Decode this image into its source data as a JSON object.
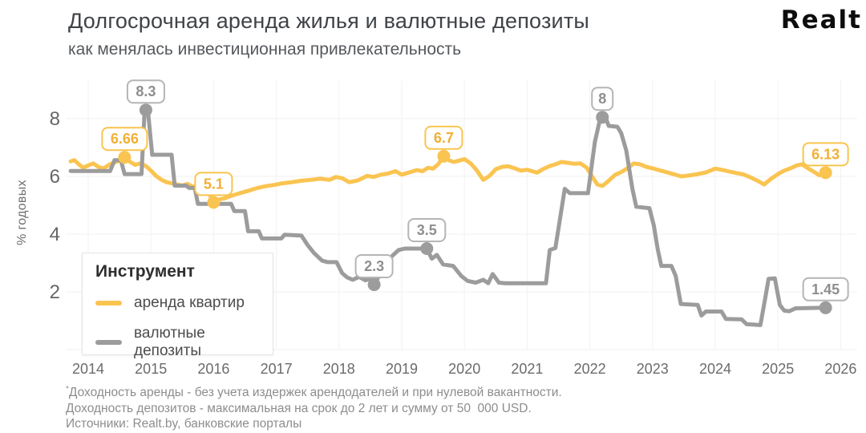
{
  "header": {
    "title": "Долгосрочная аренда жилья и валютные депозиты",
    "subtitle": "как менялась инвестиционная привлекательность",
    "logo": "Realt"
  },
  "footer": {
    "marker": "*",
    "lines": [
      "Доходность аренды - без учета издержек арендодателей и при нулевой вакантности.",
      "Доходность депозитов - максимальная на срок до 2 лет и сумму от 50  000 USD.",
      "Источники: Realt.by, банковские порталы"
    ]
  },
  "chart_data": {
    "type": "line",
    "title": "Долгосрочная аренда жилья и валютные депозиты",
    "subtitle": "как менялась инвестиционная привлекательность",
    "ylabel": "% годовых",
    "xlabel": "",
    "x_ticks": [
      2014,
      2015,
      2016,
      2017,
      2018,
      2019,
      2020,
      2021,
      2022,
      2023,
      2024,
      2025,
      2026
    ],
    "y_ticks": [
      2,
      4,
      6,
      8
    ],
    "y_gridlines": [
      0,
      2,
      4,
      6,
      8
    ],
    "xlim": [
      2013.7,
      2026.3
    ],
    "ylim": [
      0,
      9.3
    ],
    "grid": true,
    "legend": {
      "title": "Инструмент",
      "position": "bottom-left",
      "entries": [
        {
          "label": "аренда квартир",
          "color": "#FAC451"
        },
        {
          "label": "валютные депозиты",
          "color": "#9C9C9C"
        }
      ]
    },
    "series": [
      {
        "name": "аренда квартир",
        "color": "#FAC451",
        "label_color": "#F2AF35",
        "label_border": "#F8C54F",
        "points": [
          [
            2013.72,
            6.52
          ],
          [
            2013.78,
            6.56
          ],
          [
            2013.85,
            6.42
          ],
          [
            2013.92,
            6.3
          ],
          [
            2014.0,
            6.38
          ],
          [
            2014.08,
            6.45
          ],
          [
            2014.17,
            6.32
          ],
          [
            2014.25,
            6.28
          ],
          [
            2014.33,
            6.4
          ],
          [
            2014.42,
            6.48
          ],
          [
            2014.5,
            6.55
          ],
          [
            2014.58,
            6.66
          ],
          [
            2014.67,
            6.5
          ],
          [
            2014.75,
            6.4
          ],
          [
            2014.83,
            6.45
          ],
          [
            2014.92,
            6.36
          ],
          [
            2015.0,
            6.2
          ],
          [
            2015.08,
            6.02
          ],
          [
            2015.17,
            5.88
          ],
          [
            2015.25,
            5.8
          ],
          [
            2015.33,
            5.76
          ],
          [
            2015.42,
            5.72
          ],
          [
            2015.5,
            5.68
          ],
          [
            2015.58,
            5.74
          ],
          [
            2015.67,
            5.64
          ],
          [
            2015.75,
            5.71
          ],
          [
            2015.83,
            5.64
          ],
          [
            2015.9,
            5.52
          ],
          [
            2016.0,
            5.1
          ],
          [
            2016.08,
            5.2
          ],
          [
            2016.17,
            5.24
          ],
          [
            2016.25,
            5.3
          ],
          [
            2016.33,
            5.36
          ],
          [
            2016.45,
            5.44
          ],
          [
            2016.58,
            5.52
          ],
          [
            2016.7,
            5.6
          ],
          [
            2016.83,
            5.66
          ],
          [
            2016.95,
            5.7
          ],
          [
            2017.1,
            5.76
          ],
          [
            2017.25,
            5.8
          ],
          [
            2017.4,
            5.85
          ],
          [
            2017.55,
            5.88
          ],
          [
            2017.7,
            5.92
          ],
          [
            2017.85,
            5.88
          ],
          [
            2017.95,
            5.98
          ],
          [
            2018.05,
            5.94
          ],
          [
            2018.16,
            5.8
          ],
          [
            2018.3,
            5.86
          ],
          [
            2018.45,
            6.02
          ],
          [
            2018.55,
            5.98
          ],
          [
            2018.65,
            6.05
          ],
          [
            2018.78,
            6.1
          ],
          [
            2018.9,
            6.18
          ],
          [
            2019.0,
            6.06
          ],
          [
            2019.12,
            6.14
          ],
          [
            2019.24,
            6.22
          ],
          [
            2019.33,
            6.18
          ],
          [
            2019.42,
            6.3
          ],
          [
            2019.5,
            6.27
          ],
          [
            2019.58,
            6.42
          ],
          [
            2019.67,
            6.7
          ],
          [
            2019.75,
            6.56
          ],
          [
            2019.83,
            6.5
          ],
          [
            2019.92,
            6.55
          ],
          [
            2020.0,
            6.6
          ],
          [
            2020.1,
            6.45
          ],
          [
            2020.2,
            6.2
          ],
          [
            2020.3,
            5.88
          ],
          [
            2020.4,
            6.02
          ],
          [
            2020.5,
            6.25
          ],
          [
            2020.6,
            6.33
          ],
          [
            2020.7,
            6.35
          ],
          [
            2020.8,
            6.28
          ],
          [
            2020.9,
            6.2
          ],
          [
            2021.0,
            6.23
          ],
          [
            2021.08,
            6.18
          ],
          [
            2021.16,
            6.13
          ],
          [
            2021.25,
            6.25
          ],
          [
            2021.35,
            6.35
          ],
          [
            2021.45,
            6.42
          ],
          [
            2021.55,
            6.5
          ],
          [
            2021.65,
            6.47
          ],
          [
            2021.75,
            6.44
          ],
          [
            2021.85,
            6.45
          ],
          [
            2021.95,
            6.3
          ],
          [
            2022.05,
            5.95
          ],
          [
            2022.12,
            5.72
          ],
          [
            2022.2,
            5.67
          ],
          [
            2022.3,
            5.85
          ],
          [
            2022.4,
            6.05
          ],
          [
            2022.5,
            6.15
          ],
          [
            2022.6,
            6.28
          ],
          [
            2022.7,
            6.45
          ],
          [
            2022.8,
            6.42
          ],
          [
            2022.9,
            6.33
          ],
          [
            2023.0,
            6.28
          ],
          [
            2023.1,
            6.22
          ],
          [
            2023.2,
            6.16
          ],
          [
            2023.33,
            6.08
          ],
          [
            2023.46,
            6.0
          ],
          [
            2023.6,
            6.04
          ],
          [
            2023.72,
            6.08
          ],
          [
            2023.85,
            6.14
          ],
          [
            2024.0,
            6.27
          ],
          [
            2024.1,
            6.23
          ],
          [
            2024.2,
            6.18
          ],
          [
            2024.33,
            6.12
          ],
          [
            2024.45,
            6.07
          ],
          [
            2024.58,
            5.95
          ],
          [
            2024.7,
            5.82
          ],
          [
            2024.78,
            5.72
          ],
          [
            2024.88,
            5.9
          ],
          [
            2025.0,
            6.08
          ],
          [
            2025.1,
            6.2
          ],
          [
            2025.2,
            6.28
          ],
          [
            2025.3,
            6.38
          ],
          [
            2025.38,
            6.42
          ],
          [
            2025.48,
            6.28
          ],
          [
            2025.58,
            6.15
          ],
          [
            2025.66,
            6.04
          ],
          [
            2025.76,
            6.13
          ]
        ]
      },
      {
        "name": "валютные депозиты",
        "color": "#9C9C9C",
        "label_color": "#8E8E8E",
        "label_border": "#B5B5B5",
        "points": [
          [
            2013.72,
            6.19
          ],
          [
            2014.35,
            6.19
          ],
          [
            2014.42,
            6.56
          ],
          [
            2014.52,
            6.56
          ],
          [
            2014.58,
            6.08
          ],
          [
            2014.85,
            6.08
          ],
          [
            2014.9,
            8.32
          ],
          [
            2014.95,
            8.32
          ],
          [
            2015.02,
            6.75
          ],
          [
            2015.33,
            6.75
          ],
          [
            2015.38,
            5.68
          ],
          [
            2015.56,
            5.68
          ],
          [
            2015.61,
            5.6
          ],
          [
            2015.7,
            5.6
          ],
          [
            2015.75,
            5.05
          ],
          [
            2016.28,
            5.05
          ],
          [
            2016.33,
            4.8
          ],
          [
            2016.5,
            4.8
          ],
          [
            2016.55,
            4.1
          ],
          [
            2016.72,
            4.1
          ],
          [
            2016.77,
            3.85
          ],
          [
            2017.08,
            3.85
          ],
          [
            2017.13,
            3.98
          ],
          [
            2017.4,
            3.95
          ],
          [
            2017.5,
            3.62
          ],
          [
            2017.6,
            3.35
          ],
          [
            2017.73,
            3.08
          ],
          [
            2017.82,
            3.03
          ],
          [
            2017.96,
            3.03
          ],
          [
            2018.05,
            2.65
          ],
          [
            2018.13,
            2.5
          ],
          [
            2018.22,
            2.42
          ],
          [
            2018.32,
            2.52
          ],
          [
            2018.42,
            2.4
          ],
          [
            2018.5,
            2.46
          ],
          [
            2018.56,
            2.25
          ],
          [
            2018.64,
            2.55
          ],
          [
            2018.73,
            2.95
          ],
          [
            2018.85,
            3.25
          ],
          [
            2018.95,
            3.45
          ],
          [
            2019.05,
            3.5
          ],
          [
            2019.4,
            3.5
          ],
          [
            2019.48,
            3.15
          ],
          [
            2019.56,
            3.28
          ],
          [
            2019.66,
            2.95
          ],
          [
            2019.82,
            2.9
          ],
          [
            2019.95,
            2.55
          ],
          [
            2020.05,
            2.38
          ],
          [
            2020.18,
            2.32
          ],
          [
            2020.3,
            2.42
          ],
          [
            2020.38,
            2.3
          ],
          [
            2020.45,
            2.62
          ],
          [
            2020.55,
            2.32
          ],
          [
            2020.65,
            2.3
          ],
          [
            2021.3,
            2.3
          ],
          [
            2021.36,
            3.45
          ],
          [
            2021.45,
            3.52
          ],
          [
            2021.53,
            4.6
          ],
          [
            2021.6,
            5.57
          ],
          [
            2021.68,
            5.42
          ],
          [
            2021.97,
            5.42
          ],
          [
            2022.08,
            7.2
          ],
          [
            2022.17,
            8.05
          ],
          [
            2022.25,
            8.05
          ],
          [
            2022.3,
            7.75
          ],
          [
            2022.44,
            7.72
          ],
          [
            2022.5,
            7.5
          ],
          [
            2022.58,
            6.9
          ],
          [
            2022.68,
            5.55
          ],
          [
            2022.74,
            4.95
          ],
          [
            2022.95,
            4.9
          ],
          [
            2023.02,
            4.3
          ],
          [
            2023.08,
            3.5
          ],
          [
            2023.14,
            2.9
          ],
          [
            2023.3,
            2.9
          ],
          [
            2023.37,
            2.55
          ],
          [
            2023.45,
            1.58
          ],
          [
            2023.72,
            1.55
          ],
          [
            2023.78,
            1.18
          ],
          [
            2023.85,
            1.32
          ],
          [
            2024.1,
            1.32
          ],
          [
            2024.17,
            1.06
          ],
          [
            2024.42,
            1.05
          ],
          [
            2024.5,
            0.88
          ],
          [
            2024.72,
            0.85
          ],
          [
            2024.79,
            1.7
          ],
          [
            2024.85,
            2.45
          ],
          [
            2024.95,
            2.47
          ],
          [
            2025.03,
            1.55
          ],
          [
            2025.1,
            1.35
          ],
          [
            2025.18,
            1.33
          ],
          [
            2025.28,
            1.43
          ],
          [
            2025.76,
            1.45
          ]
        ]
      }
    ],
    "annotations": [
      {
        "series": 0,
        "x": 2014.58,
        "y": 6.66,
        "label": "6.66"
      },
      {
        "series": 1,
        "x": 2014.92,
        "y": 8.3,
        "label": "8.3"
      },
      {
        "series": 0,
        "x": 2016.0,
        "y": 5.1,
        "label": "5.1"
      },
      {
        "series": 1,
        "x": 2018.56,
        "y": 2.25,
        "label": "2.3"
      },
      {
        "series": 1,
        "x": 2019.4,
        "y": 3.5,
        "label": "3.5"
      },
      {
        "series": 0,
        "x": 2019.67,
        "y": 6.7,
        "label": "6.7"
      },
      {
        "series": 1,
        "x": 2022.2,
        "y": 8.05,
        "label": "8"
      },
      {
        "series": 0,
        "x": 2025.76,
        "y": 6.13,
        "label": "6.13"
      },
      {
        "series": 1,
        "x": 2025.76,
        "y": 1.45,
        "label": "1.45"
      }
    ]
  }
}
